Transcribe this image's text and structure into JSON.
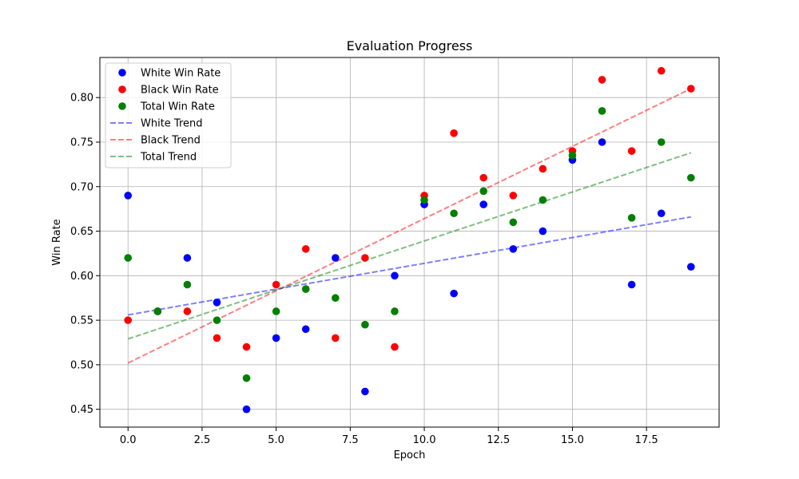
{
  "chart_data": {
    "type": "scatter",
    "title": "Evaluation Progress",
    "xlabel": "Epoch",
    "ylabel": "Win Rate",
    "xlim": [
      -0.95,
      19.95
    ],
    "ylim": [
      0.43,
      0.845
    ],
    "xticks": [
      "0.0",
      "2.5",
      "5.0",
      "7.5",
      "10.0",
      "12.5",
      "15.0",
      "17.5"
    ],
    "yticks": [
      "0.45",
      "0.50",
      "0.55",
      "0.60",
      "0.65",
      "0.70",
      "0.75",
      "0.80"
    ],
    "grid": true,
    "legend_position": "upper-left",
    "x": [
      0,
      1,
      2,
      3,
      4,
      5,
      6,
      7,
      8,
      9,
      10,
      11,
      12,
      13,
      14,
      15,
      16,
      17,
      18,
      19
    ],
    "series": [
      {
        "name": "White Win Rate",
        "kind": "points",
        "color": "#0000ff",
        "values": [
          0.69,
          0.56,
          0.62,
          0.57,
          0.45,
          0.53,
          0.54,
          0.62,
          0.47,
          0.6,
          0.68,
          0.58,
          0.68,
          0.63,
          0.65,
          0.73,
          0.75,
          0.59,
          0.67,
          0.61
        ]
      },
      {
        "name": "Black Win Rate",
        "kind": "points",
        "color": "#ff0000",
        "values": [
          0.55,
          0.56,
          0.56,
          0.53,
          0.52,
          0.59,
          0.63,
          0.53,
          0.62,
          0.52,
          0.69,
          0.76,
          0.71,
          0.69,
          0.72,
          0.74,
          0.82,
          0.74,
          0.83,
          0.81
        ]
      },
      {
        "name": "Total Win Rate",
        "kind": "points",
        "color": "#008000",
        "values": [
          0.62,
          0.56,
          0.59,
          0.55,
          0.485,
          0.56,
          0.585,
          0.575,
          0.545,
          0.56,
          0.685,
          0.67,
          0.695,
          0.66,
          0.685,
          0.735,
          0.785,
          0.665,
          0.75,
          0.71
        ]
      },
      {
        "name": "White Trend",
        "kind": "trend",
        "color": "#0000ff",
        "start": [
          0,
          0.556
        ],
        "end": [
          19,
          0.666
        ]
      },
      {
        "name": "Black Trend",
        "kind": "trend",
        "color": "#ff0000",
        "start": [
          0,
          0.502
        ],
        "end": [
          19,
          0.81
        ]
      },
      {
        "name": "Total Trend",
        "kind": "trend",
        "color": "#008000",
        "start": [
          0,
          0.529
        ],
        "end": [
          19,
          0.738
        ]
      }
    ]
  }
}
